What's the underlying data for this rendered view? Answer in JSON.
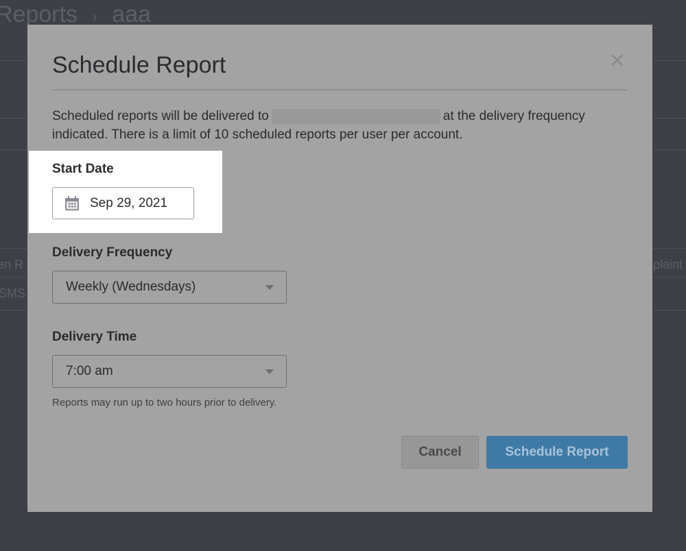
{
  "background": {
    "breadcrumb": [
      "Reports",
      "›",
      "aaa"
    ],
    "cells": [
      "en R",
      "SMS",
      "plaint"
    ]
  },
  "modal": {
    "title": "Schedule Report",
    "close_icon": "close-icon",
    "description_before": "Scheduled reports will be delivered to",
    "description_after": "at the delivery frequency indicated. There is a limit of 10 scheduled reports per user per account.",
    "start_date": {
      "label": "Start Date",
      "value": "Sep 29, 2021",
      "icon": "calendar-icon"
    },
    "delivery_frequency": {
      "label": "Delivery Frequency",
      "value": "Weekly (Wednesdays)"
    },
    "delivery_time": {
      "label": "Delivery Time",
      "value": "7:00 am",
      "hint": "Reports may run up to two hours prior to delivery."
    },
    "cancel_label": "Cancel",
    "submit_label": "Schedule Report",
    "accent_color": "#3f7aa6"
  }
}
